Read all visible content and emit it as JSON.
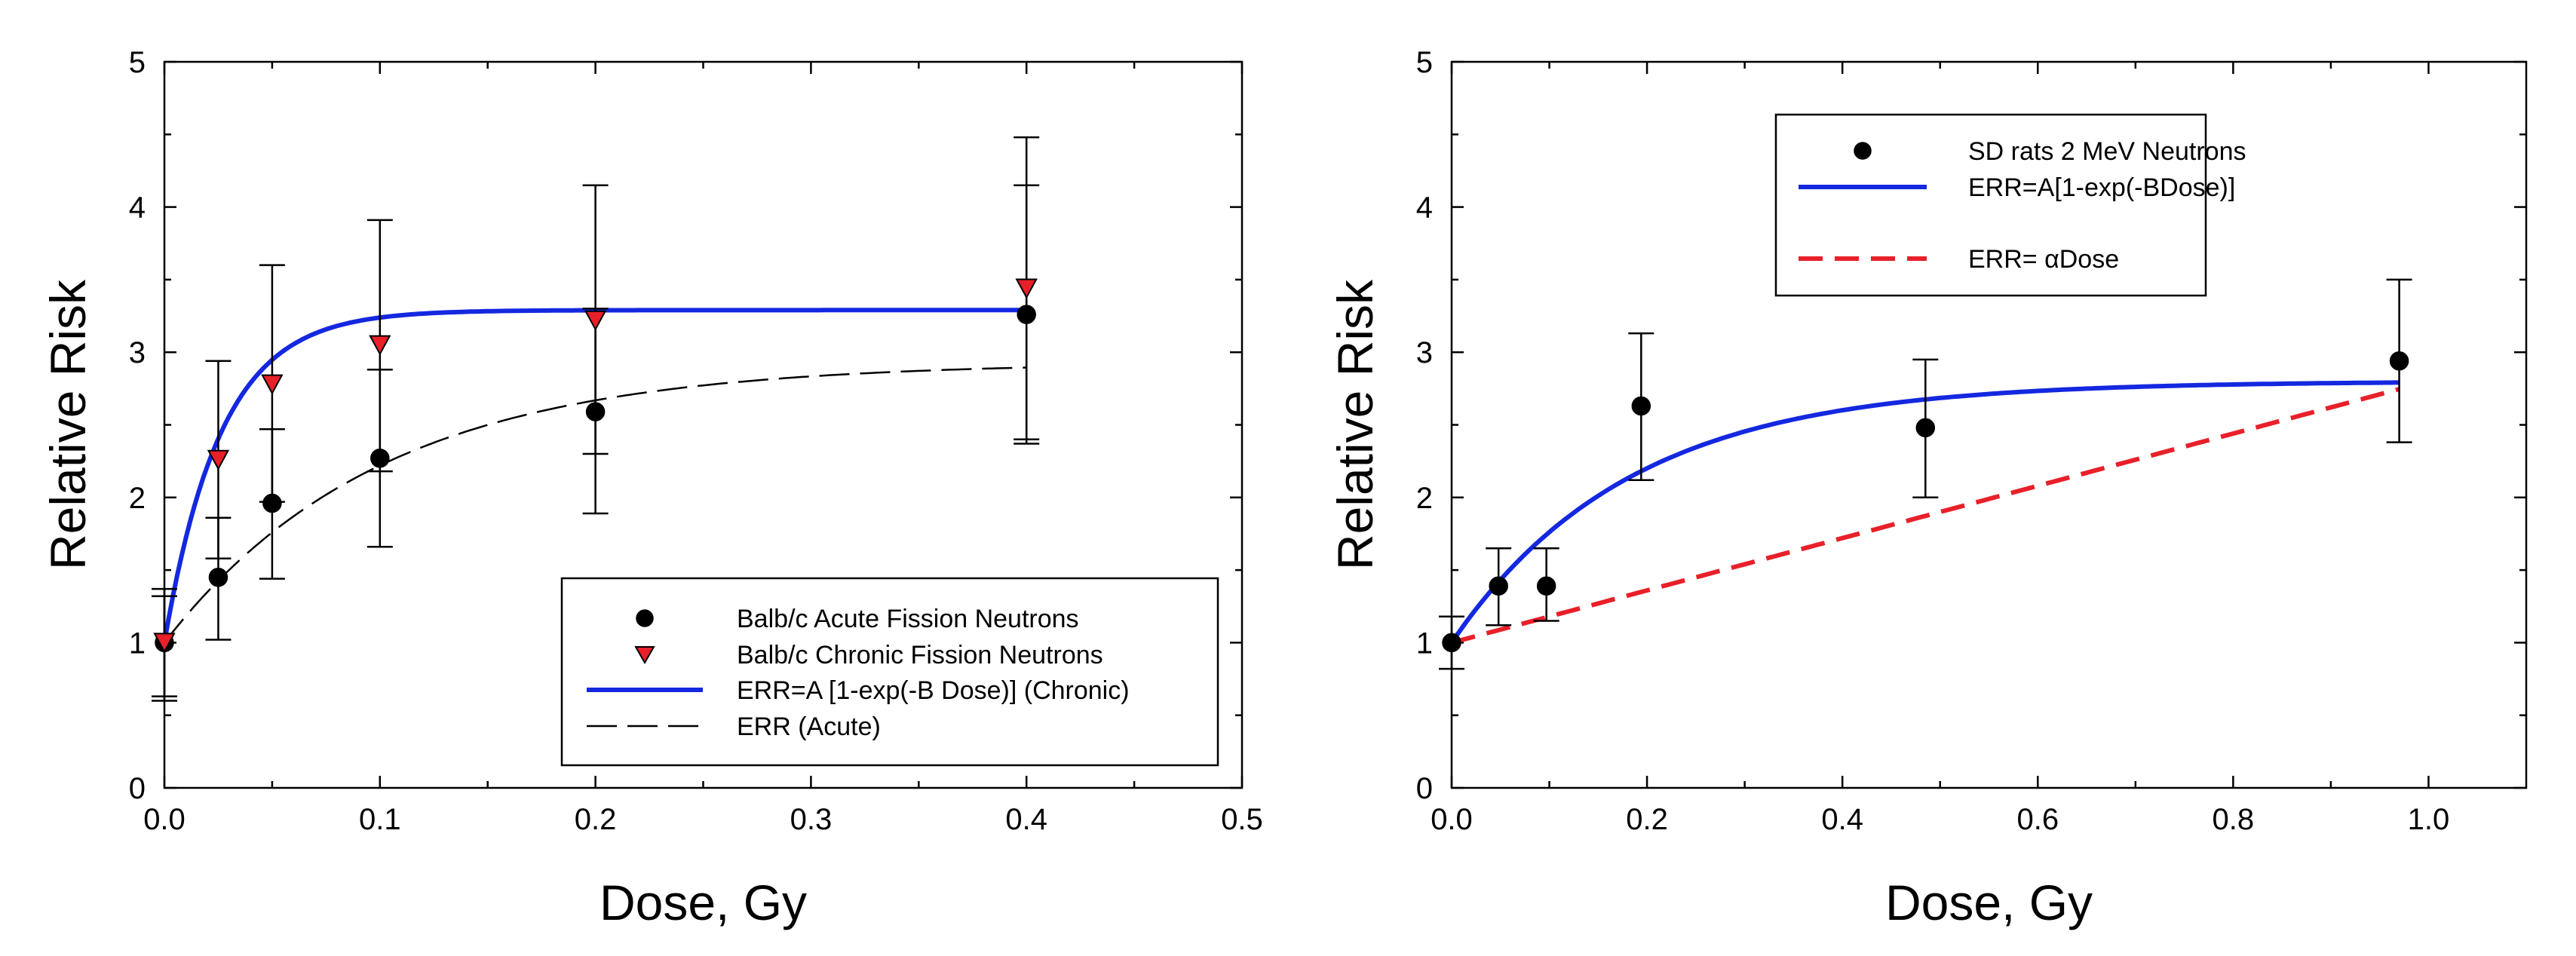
{
  "chart_data": [
    {
      "type": "scatter",
      "xlabel": "Dose, Gy",
      "ylabel": "Relative Risk",
      "xlim": [
        0,
        0.5
      ],
      "ylim": [
        0,
        5
      ],
      "xticks": [
        0,
        0.1,
        0.2,
        0.3,
        0.4,
        0.5
      ],
      "xtick_labels": [
        "0.0",
        "0.1",
        "0.2",
        "0.3",
        "0.4",
        "0.5"
      ],
      "yticks": [
        0,
        1,
        2,
        3,
        4,
        5
      ],
      "ytick_labels": [
        "0",
        "1",
        "2",
        "3",
        "4",
        "5"
      ],
      "legend_position": "bottom-right",
      "series": [
        {
          "name": "Balb/c Acute Fission Neutrons",
          "kind": "points",
          "marker": "circle",
          "color": "#000000",
          "x": [
            0,
            0.025,
            0.05,
            0.1,
            0.2,
            0.4
          ],
          "y": [
            1.0,
            1.45,
            1.96,
            2.27,
            2.59,
            3.26
          ],
          "err_low": [
            0.6,
            1.02,
            1.44,
            1.66,
            1.89,
            2.37
          ],
          "err_high": [
            1.37,
            1.86,
            2.47,
            2.88,
            3.3,
            4.15
          ]
        },
        {
          "name": "Balb/c Chronic Fission Neutrons",
          "kind": "points",
          "marker": "triangle-down",
          "color": "#e8202a",
          "x": [
            0,
            0.025,
            0.05,
            0.1,
            0.2,
            0.4
          ],
          "y": [
            1.0,
            2.26,
            2.78,
            3.05,
            3.22,
            3.44
          ],
          "err_low": [
            0.63,
            1.58,
            1.97,
            2.18,
            2.3,
            2.4
          ],
          "err_high": [
            1.32,
            2.94,
            3.6,
            3.91,
            4.15,
            4.48
          ]
        },
        {
          "name": "ERR=A [1-exp(-B Dose)] (Chronic)",
          "kind": "curve",
          "style": "solid",
          "color": "#1428e0",
          "model": "1 + A*(1-exp(-B*x))",
          "A": 2.29,
          "B": 38,
          "x_range": [
            0,
            0.4
          ]
        },
        {
          "name": "ERR (Acute)",
          "kind": "curve",
          "style": "dashed",
          "color": "#000000",
          "model": "1 + A*(1-exp(-B*x))",
          "A": 1.93,
          "B": 10,
          "x_range": [
            0,
            0.4
          ]
        }
      ]
    },
    {
      "type": "scatter",
      "xlabel": "Dose, Gy",
      "ylabel": "Relative Risk",
      "xlim": [
        0,
        1.1
      ],
      "ylim": [
        0,
        5
      ],
      "xticks": [
        0,
        0.2,
        0.4,
        0.6,
        0.8,
        1.0
      ],
      "xtick_labels": [
        "0.0",
        "0.2",
        "0.4",
        "0.6",
        "0.8",
        "1.0"
      ],
      "yticks": [
        0,
        1,
        2,
        3,
        4,
        5
      ],
      "ytick_labels": [
        "0",
        "1",
        "2",
        "3",
        "4",
        "5"
      ],
      "legend_position": "top-center",
      "series": [
        {
          "name": "SD rats 2 MeV Neutrons",
          "kind": "points",
          "marker": "circle",
          "color": "#000000",
          "x": [
            0,
            0.048,
            0.097,
            0.194,
            0.485,
            0.97
          ],
          "y": [
            1.0,
            1.39,
            1.39,
            2.63,
            2.48,
            2.94
          ],
          "err_low": [
            0.82,
            1.12,
            1.15,
            2.12,
            2.0,
            2.38
          ],
          "err_high": [
            1.18,
            1.65,
            1.65,
            3.13,
            2.95,
            3.5
          ]
        },
        {
          "name": "ERR=A[1-exp(-BDose)]",
          "kind": "curve",
          "style": "solid",
          "color": "#1428e0",
          "model": "1 + A*(1-exp(-B*x))",
          "A": 1.8,
          "B": 5.5,
          "x_range": [
            0,
            0.97
          ]
        },
        {
          "name": "ERR= αDose",
          "kind": "curve",
          "style": "dashed",
          "color": "#e8202a",
          "model": "1 + a*x",
          "a": 1.8,
          "x_range": [
            0,
            0.97
          ]
        }
      ]
    }
  ]
}
